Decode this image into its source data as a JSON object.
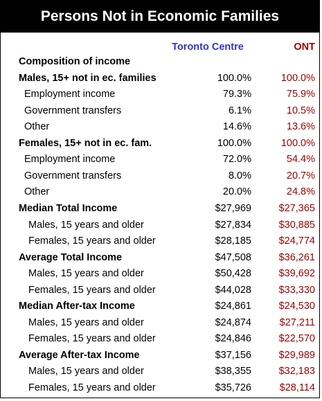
{
  "header": {
    "title": "Persons Not in Economic Families"
  },
  "table": {
    "columns": [
      "Toronto Centre",
      "ONT"
    ],
    "rows": [
      [
        "Composition of income"
      ],
      [
        "Males, 15+ not in ec. families",
        "100.0%",
        "100.0%"
      ],
      [
        "Employment income",
        "79.3%",
        "75.9%"
      ],
      [
        "Government transfers",
        "6.1%",
        "10.5%"
      ],
      [
        "Other",
        "14.6%",
        "13.6%"
      ],
      [
        "Females, 15+ not in ec. fam.",
        "100.0%",
        "100.0%"
      ],
      [
        "Employment income",
        "72.0%",
        "54.4%"
      ],
      [
        "Government transfers",
        "8.0%",
        "20.7%"
      ],
      [
        "Other",
        "20.0%",
        "24.8%"
      ],
      [
        "Median Total Income",
        "$27,969",
        "$27,365"
      ],
      [
        "Males, 15 years and older",
        "$27,834",
        "$30,885"
      ],
      [
        "Females, 15 years and older",
        "$28,185",
        "$24,774"
      ],
      [
        "Average Total Income",
        "$47,508",
        "$36,261"
      ],
      [
        "Males, 15 years and older",
        "$50,428",
        "$39,692"
      ],
      [
        "Females, 15 years and older",
        "$44,028",
        "$33,330"
      ],
      [
        "Median After-tax Income",
        "$24,861",
        "$24,530"
      ],
      [
        "Males, 15 years and older",
        "$24,874",
        "$27,211"
      ],
      [
        "Females, 15 years and older",
        "$24,846",
        "$22,570"
      ],
      [
        "Average After-tax Income",
        "$37,156",
        "$29,989"
      ],
      [
        "Males, 15 years and older",
        "$38,355",
        "$32,183"
      ],
      [
        "Females, 15 years and older",
        "$35,726",
        "$28,114"
      ]
    ]
  }
}
